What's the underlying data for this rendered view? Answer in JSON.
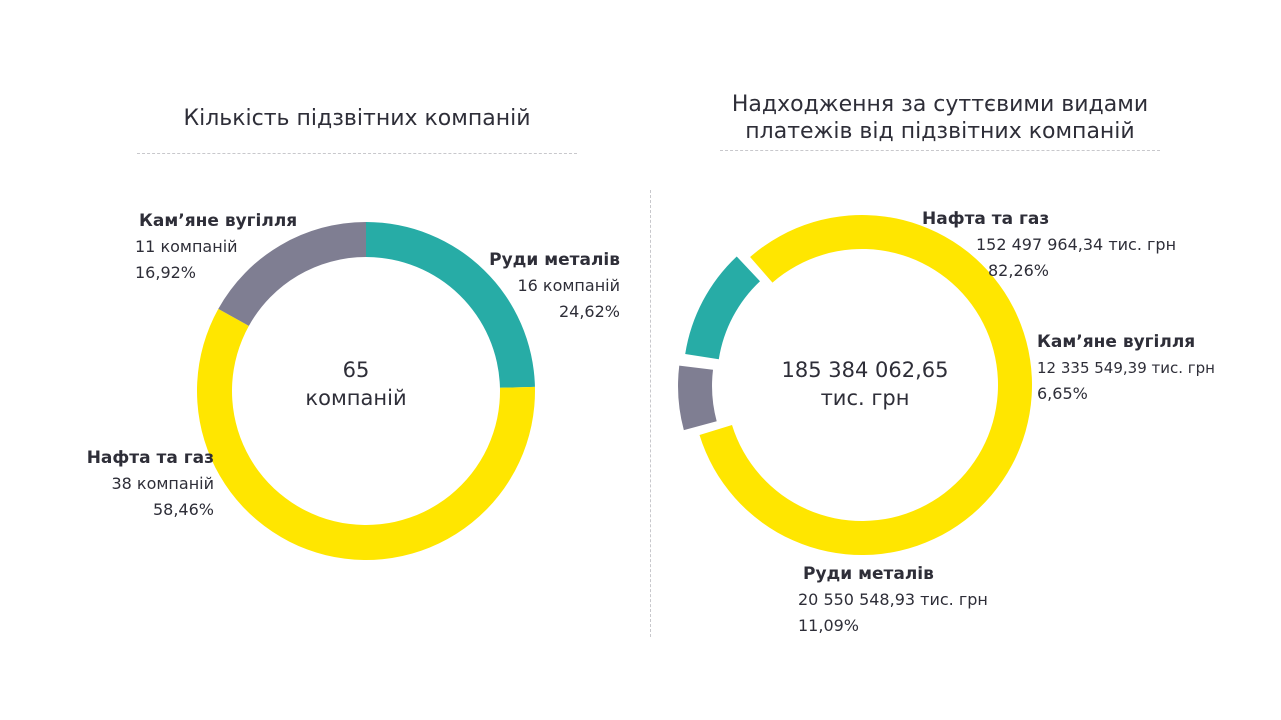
{
  "chart_data": [
    {
      "type": "pie",
      "title": "Кількість підзвітних компаній",
      "center": {
        "value": "65",
        "unit": "компаній"
      },
      "total": 65,
      "colors": [
        "#27aca6",
        "#ffe600",
        "#7f7e92"
      ],
      "categories": [
        "Руди металів",
        "Нафта та газ",
        "Кам’яне вугілля"
      ],
      "values": [
        16,
        38,
        11
      ],
      "labels": [
        "16 компаній",
        "38 компаній",
        "11 компаній"
      ],
      "percents": [
        "24,62%",
        "58,46%",
        "16,92%"
      ]
    },
    {
      "type": "pie",
      "title": "Надходження за суттєвими видами платежів від підзвітних компаній",
      "center": {
        "value": "185 384 062,65",
        "unit": "тис. грн"
      },
      "total": 185384062.65,
      "colors": [
        "#ffe600",
        "#7f7e92",
        "#27aca6"
      ],
      "categories": [
        "Нафта та газ",
        "Кам’яне вугілля",
        "Руди металів"
      ],
      "values": [
        152497964.34,
        12335549.39,
        20550548.93
      ],
      "labels": [
        "152 497 964,34 тис. грн",
        "12 335 549,39 тис. грн",
        "20 550 548,93 тис. грн"
      ],
      "percents": [
        "82,26%",
        "6,65%",
        "11,09%"
      ]
    }
  ]
}
